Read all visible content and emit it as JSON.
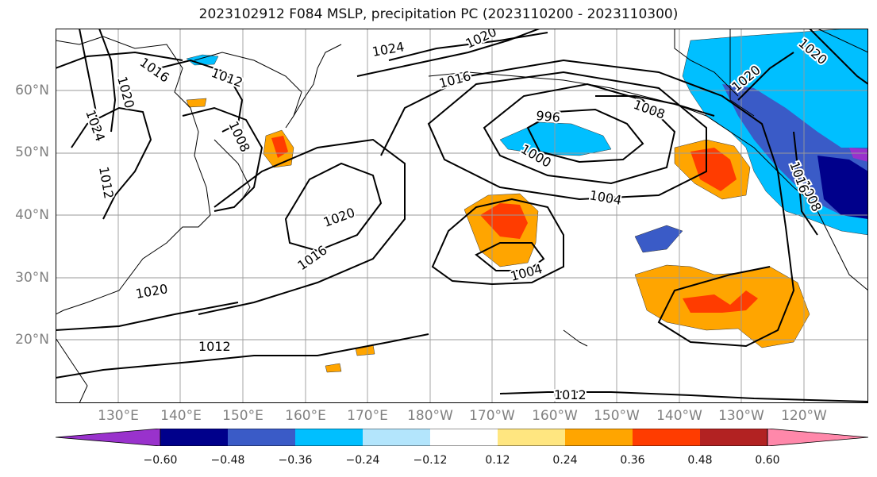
{
  "title": "2023102912 F084 MSLP, precipitation PC (2023110200 - 2023110300)",
  "lat_labels": [
    "60°N",
    "50°N",
    "40°N",
    "30°N",
    "20°N"
  ],
  "lon_labels": [
    "130°E",
    "140°E",
    "150°E",
    "160°E",
    "170°E",
    "180°W",
    "170°W",
    "160°W",
    "150°W",
    "140°W",
    "130°W",
    "120°W"
  ],
  "contour_labels": [
    "1024",
    "1020",
    "1016",
    "1012",
    "1024",
    "1020",
    "1016",
    "1012",
    "1008",
    "1012",
    "1020",
    "1016",
    "1020",
    "1012",
    "996",
    "1000",
    "1004",
    "1004",
    "1008",
    "1008",
    "1020",
    "1016",
    "1020"
  ],
  "colorbar": {
    "colors": [
      "#9932CC",
      "#00008B",
      "#3A5BC7",
      "#00BFFF",
      "#B3E5FC",
      "#FFFFFF",
      "#FFE680",
      "#FFA500",
      "#FF3C00",
      "#B22222",
      "#FF88AA"
    ],
    "tick_labels": [
      "−0.60",
      "−0.48",
      "−0.36",
      "−0.24",
      "−0.12",
      "0.12",
      "0.24",
      "0.36",
      "0.48",
      "0.60"
    ]
  }
}
